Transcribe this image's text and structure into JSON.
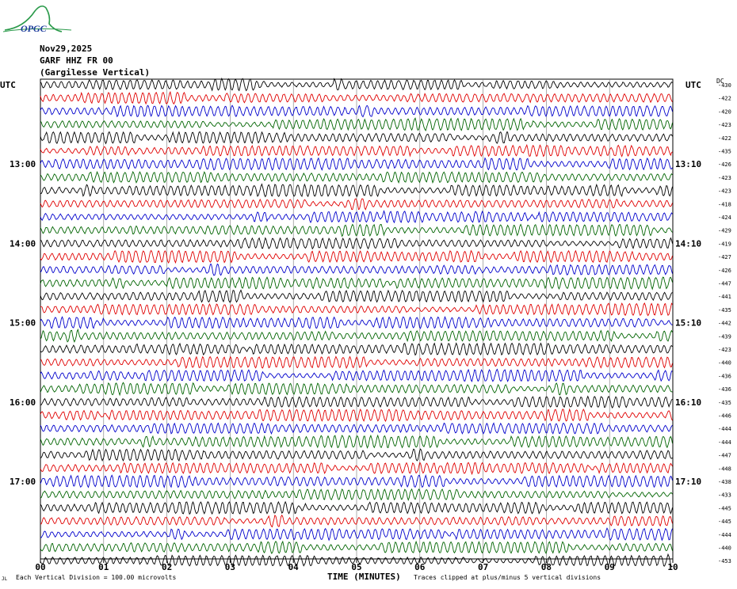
{
  "logo": {
    "text": "OPGC",
    "color": "#2a9a4a"
  },
  "header": {
    "date": "Nov29,2025",
    "station": "GARF HHZ FR 00",
    "location": "(Gargilesse Vertical)"
  },
  "utc_left": "UTC",
  "utc_right": "UTC",
  "dc_label": "DC",
  "footer": {
    "scale": "Each Vertical Division =  100.00 microvolts",
    "clip": "Traces clipped at plus/minus 5 vertical divisions",
    "corner": "JL"
  },
  "chart_data": {
    "type": "line",
    "title": "",
    "xlabel": "TIME (MINUTES)",
    "x_ticks": [
      "00",
      "01",
      "02",
      "03",
      "04",
      "05",
      "06",
      "07",
      "08",
      "09",
      "10"
    ],
    "xlim": [
      0,
      10
    ],
    "trace_colors": [
      "#000000",
      "#e00000",
      "#0000cc",
      "#006400"
    ],
    "left_hour_labels": [
      {
        "trace": 6,
        "label": "13:00"
      },
      {
        "trace": 12,
        "label": "14:00"
      },
      {
        "trace": 18,
        "label": "15:00"
      },
      {
        "trace": 24,
        "label": "16:00"
      },
      {
        "trace": 30,
        "label": "17:00"
      }
    ],
    "right_hour_labels": [
      {
        "trace": 6,
        "label": "13:10"
      },
      {
        "trace": 12,
        "label": "14:10"
      },
      {
        "trace": 18,
        "label": "15:10"
      },
      {
        "trace": 24,
        "label": "16:10"
      },
      {
        "trace": 30,
        "label": "17:10"
      }
    ],
    "dc_offsets": [
      "-430",
      "-422",
      "-420",
      "-423",
      "-422",
      "-435",
      "-426",
      "-423",
      "-423",
      "-418",
      "-424",
      "-429",
      "-419",
      "-427",
      "-426",
      "-447",
      "-441",
      "-435",
      "-442",
      "-439",
      "-423",
      "-440",
      "-436",
      "-436",
      "-435",
      "-446",
      "-444",
      "-444",
      "-447",
      "-448",
      "-438",
      "-433",
      "-445",
      "-445",
      "-444",
      "-440",
      "-453"
    ]
  }
}
